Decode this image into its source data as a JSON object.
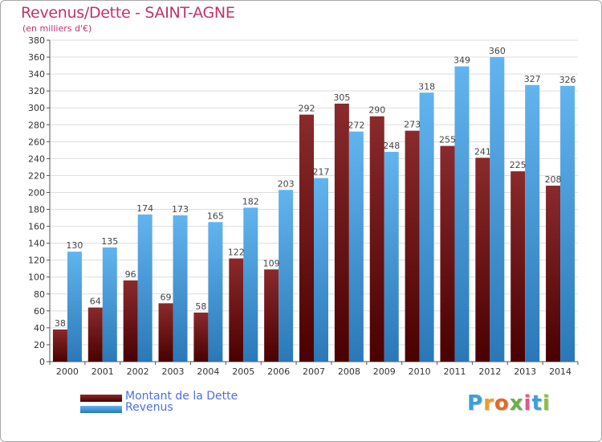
{
  "title": "Revenus/Dette - SAINT-AGNE",
  "subtitle": "(en milliers d'€)",
  "logo": {
    "letters": [
      "P",
      "r",
      "o",
      "x",
      "i",
      "t",
      "i"
    ],
    "colors": [
      "#3aa0d8",
      "#e8a020",
      "#e06b2a",
      "#6ab04c",
      "#e05a8a",
      "#3aa0d8",
      "#8ac040"
    ]
  },
  "colors": {
    "dette": "#7a1a1c",
    "dette_dark": "#4a0000",
    "revenus": "#5aaeea",
    "revenus_dark": "#2a78b8",
    "title": "#c0326e",
    "legend_text": "#4d6fe0"
  },
  "chart_data": {
    "type": "bar",
    "categories": [
      "2000",
      "2001",
      "2002",
      "2003",
      "2004",
      "2005",
      "2006",
      "2007",
      "2008",
      "2009",
      "2010",
      "2011",
      "2012",
      "2013",
      "2014"
    ],
    "series": [
      {
        "name": "Montant de la Dette",
        "values": [
          38,
          64,
          96,
          69,
          58,
          122,
          109,
          292,
          305,
          290,
          273,
          255,
          241,
          225,
          208
        ]
      },
      {
        "name": "Revenus",
        "values": [
          130,
          135,
          174,
          173,
          165,
          182,
          203,
          217,
          272,
          248,
          318,
          349,
          360,
          327,
          326
        ]
      }
    ],
    "ylim": [
      0,
      380
    ],
    "ytick_step": 20,
    "grid": true,
    "legend_position": "bottom-left"
  }
}
